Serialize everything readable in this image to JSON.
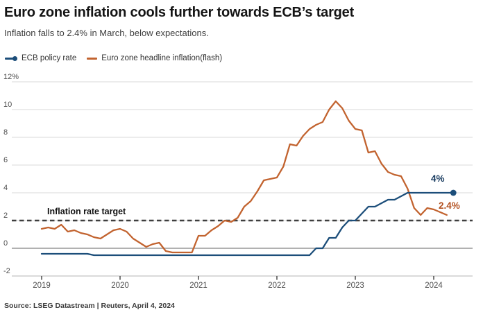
{
  "header": {
    "title": "Euro zone inflation cools further towards ECB’s target",
    "subtitle": "Inflation falls to 2.4% in March, below expectations."
  },
  "source": "Source: LSEG Datastream | Reuters, April 4, 2024",
  "chart_data": {
    "type": "line",
    "title": "Euro zone inflation cools further towards ECB’s target",
    "subtitle": "Inflation falls to 2.4% in March, below expectations.",
    "x_frequency": "monthly",
    "x_start": "2019-01",
    "grid": "horizontal",
    "legend_position": "top-left",
    "ylim": [
      -2.9,
      13.0
    ],
    "y_axis": {
      "ticks": [
        {
          "label": "12%",
          "value": 12
        },
        {
          "label": "10",
          "value": 10
        },
        {
          "label": "8",
          "value": 8
        },
        {
          "label": "6",
          "value": 6
        },
        {
          "label": "4",
          "value": 4
        },
        {
          "label": "2",
          "value": 2
        },
        {
          "label": "0",
          "value": 0
        },
        {
          "label": "-2",
          "value": -2
        }
      ]
    },
    "x_axis": {
      "ticks": [
        {
          "label": "2019",
          "month_index": 0
        },
        {
          "label": "2020",
          "month_index": 12
        },
        {
          "label": "2021",
          "month_index": 24
        },
        {
          "label": "2022",
          "month_index": 36
        },
        {
          "label": "2023",
          "month_index": 48
        },
        {
          "label": "2024",
          "month_index": 60
        }
      ]
    },
    "target_line": {
      "value": 2,
      "label": "Inflation rate target",
      "style": "dashed",
      "color": "#3e3e3e"
    },
    "series": [
      {
        "name": "ECB policy rate",
        "color": "#1c4e7a",
        "label_color": "#16395e",
        "end_label": "4%",
        "end_marker": true,
        "x_start": "2019-01",
        "x_end": "2024-04",
        "values": [
          -0.4,
          -0.4,
          -0.4,
          -0.4,
          -0.4,
          -0.4,
          -0.4,
          -0.4,
          -0.5,
          -0.5,
          -0.5,
          -0.5,
          -0.5,
          -0.5,
          -0.5,
          -0.5,
          -0.5,
          -0.5,
          -0.5,
          -0.5,
          -0.5,
          -0.5,
          -0.5,
          -0.5,
          -0.5,
          -0.5,
          -0.5,
          -0.5,
          -0.5,
          -0.5,
          -0.5,
          -0.5,
          -0.5,
          -0.5,
          -0.5,
          -0.5,
          -0.5,
          -0.5,
          -0.5,
          -0.5,
          -0.5,
          -0.5,
          0,
          0,
          0.75,
          0.75,
          1.5,
          2,
          2,
          2.5,
          3,
          3,
          3.25,
          3.5,
          3.5,
          3.75,
          4,
          4,
          4,
          4,
          4,
          4,
          4,
          4
        ]
      },
      {
        "name": "Euro zone headline inflation(flash)",
        "color": "#c2632f",
        "label_color": "#b35120",
        "end_label": "2.4%",
        "end_marker": false,
        "x_start": "2019-01",
        "x_end": "2024-03",
        "values": [
          1.4,
          1.5,
          1.4,
          1.7,
          1.2,
          1.3,
          1.1,
          1.0,
          0.8,
          0.7,
          1.0,
          1.3,
          1.4,
          1.2,
          0.7,
          0.4,
          0.1,
          0.3,
          0.4,
          -0.2,
          -0.3,
          -0.3,
          -0.3,
          -0.3,
          0.9,
          0.9,
          1.3,
          1.6,
          2.0,
          1.9,
          2.2,
          3.0,
          3.4,
          4.1,
          4.9,
          5.0,
          5.1,
          5.9,
          7.5,
          7.4,
          8.1,
          8.6,
          8.9,
          9.1,
          10.0,
          10.6,
          10.1,
          9.2,
          8.6,
          8.5,
          6.9,
          7.0,
          6.1,
          5.5,
          5.3,
          5.2,
          4.3,
          2.9,
          2.4,
          2.9,
          2.8,
          2.6,
          2.4
        ]
      }
    ]
  }
}
